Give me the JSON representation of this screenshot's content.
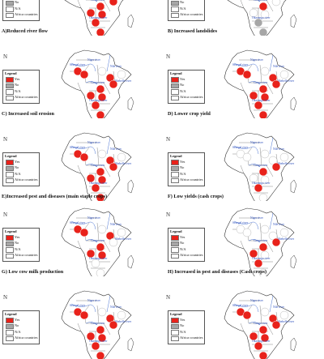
{
  "legend": {
    "title": "Legend",
    "items": [
      {
        "label": "Yes",
        "color": "#e8221b"
      },
      {
        "label": "No",
        "color": "#a6a6a6"
      },
      {
        "label": "N/A",
        "color": "#ffffff"
      },
      {
        "label": "Africa countries",
        "color": "#ffffff"
      }
    ]
  },
  "north_symbol": "N",
  "river_labels": [
    "Niger river",
    "Nile river",
    "Congo river",
    "Okavango river",
    "Shebelle river",
    "Senegal river"
  ],
  "panels": [
    {
      "caption": "A)Reduced  river flow",
      "points": [
        1,
        1,
        0,
        1,
        1,
        1,
        1,
        1,
        1,
        1,
        0
      ]
    },
    {
      "caption": "B) Increased landslides",
      "points": [
        2,
        2,
        2,
        2,
        0,
        1,
        0,
        0,
        2,
        2,
        0
      ]
    },
    {
      "caption": "C) Increased soil erosion",
      "points": [
        1,
        1,
        0,
        1,
        1,
        1,
        1,
        1,
        1,
        1,
        0
      ]
    },
    {
      "caption": "D) Lower crop yield",
      "points": [
        1,
        1,
        0,
        1,
        1,
        1,
        1,
        1,
        1,
        1,
        0
      ]
    },
    {
      "caption": "E)Increased pest and diseases (main staple crops)",
      "points": [
        1,
        1,
        0,
        1,
        1,
        1,
        1,
        1,
        1,
        1,
        0
      ]
    },
    {
      "caption": "F) Low yields (cash crops)",
      "points": [
        0,
        0,
        0,
        0,
        1,
        1,
        0,
        0,
        1,
        0,
        0
      ]
    },
    {
      "caption": "G) Low cow milk production",
      "points": [
        1,
        1,
        0,
        1,
        0,
        1,
        1,
        1,
        0,
        0,
        0
      ]
    },
    {
      "caption": "H) Increased in pest and diseases (Cash crops)",
      "points": [
        0,
        0,
        0,
        0,
        1,
        1,
        1,
        0,
        1,
        0,
        0
      ]
    },
    {
      "caption": "",
      "points": [
        1,
        1,
        0,
        1,
        1,
        1,
        1,
        1,
        1,
        1,
        0
      ]
    },
    {
      "caption": "",
      "points": [
        1,
        1,
        0,
        1,
        1,
        1,
        1,
        1,
        1,
        1,
        0
      ]
    }
  ]
}
